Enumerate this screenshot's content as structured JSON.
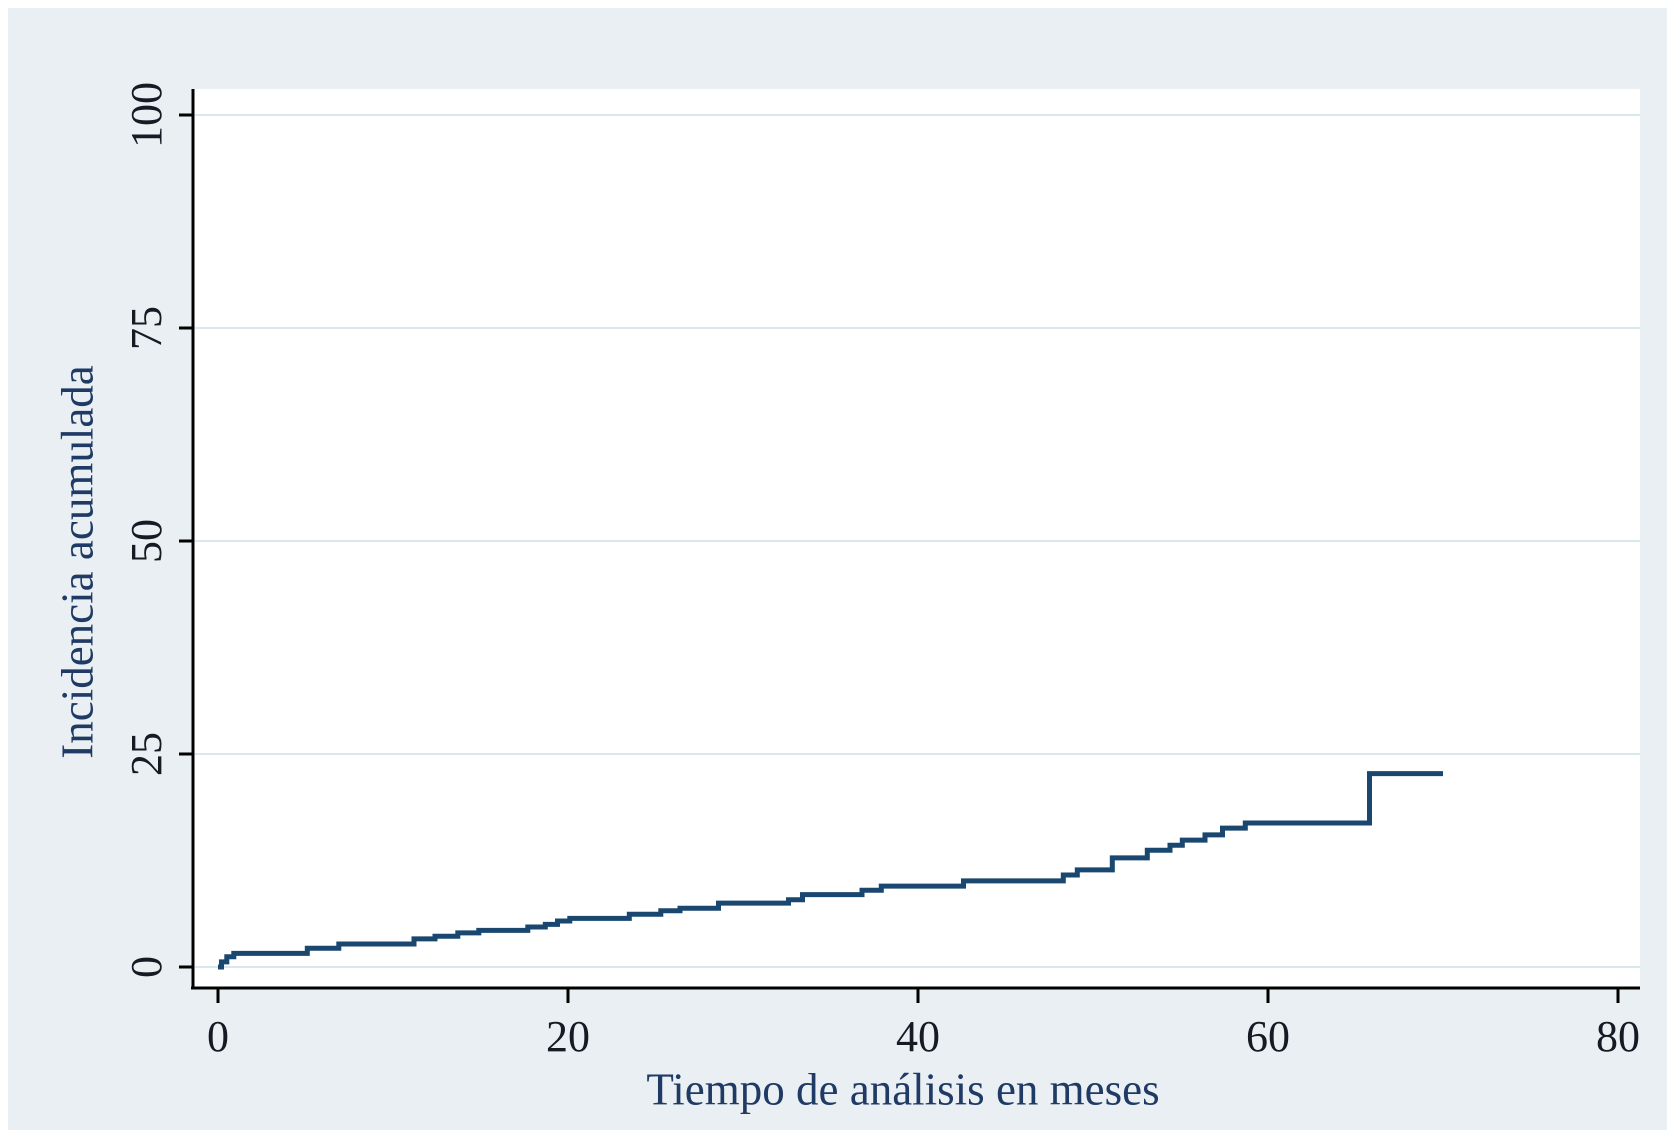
{
  "figure": {
    "background": "#ffffff",
    "panel_color": "#e9eff2",
    "plot_background": "#ffffff",
    "grid_color": "#d9e8ec",
    "axis_color": "#000000",
    "line_color": "#1a476f",
    "tick_label_color": "#151a24",
    "axis_title_color": "#1f3a64"
  },
  "chart_data": {
    "type": "line",
    "subtype": "step-cumulative-incidence",
    "title": "",
    "xlabel": "Tiempo de análisis en meses",
    "ylabel": "Incidencia acumulada",
    "xlim": [
      0,
      80
    ],
    "ylim": [
      0,
      100
    ],
    "x_ticks": [
      0,
      20,
      40,
      60,
      80
    ],
    "y_ticks": [
      0,
      25,
      50,
      75,
      100
    ],
    "x_tick_labels": [
      "0",
      "20",
      "40",
      "60",
      "80"
    ],
    "y_tick_labels": [
      "0",
      "25",
      "50",
      "75",
      "100"
    ],
    "grid": "horizontal",
    "legend": "none",
    "series": [
      {
        "name": "Incidencia acumulada",
        "steps": [
          [
            0,
            0
          ],
          [
            0.2,
            0.6
          ],
          [
            0.5,
            1.2
          ],
          [
            0.9,
            1.6
          ],
          [
            5.1,
            2.2
          ],
          [
            6.9,
            2.7
          ],
          [
            11.2,
            3.3
          ],
          [
            12.4,
            3.6
          ],
          [
            13.7,
            4.0
          ],
          [
            14.9,
            4.3
          ],
          [
            17.7,
            4.7
          ],
          [
            18.7,
            5.0
          ],
          [
            19.4,
            5.4
          ],
          [
            20.1,
            5.7
          ],
          [
            23.5,
            6.2
          ],
          [
            25.3,
            6.6
          ],
          [
            26.4,
            6.9
          ],
          [
            28.6,
            7.5
          ],
          [
            32.6,
            7.9
          ],
          [
            33.4,
            8.5
          ],
          [
            36.8,
            9.0
          ],
          [
            37.9,
            9.5
          ],
          [
            42.6,
            10.1
          ],
          [
            48.3,
            10.8
          ],
          [
            49.1,
            11.4
          ],
          [
            51.1,
            12.8
          ],
          [
            53.1,
            13.7
          ],
          [
            54.4,
            14.3
          ],
          [
            55.1,
            14.9
          ],
          [
            56.4,
            15.5
          ],
          [
            57.4,
            16.3
          ],
          [
            58.7,
            16.9
          ],
          [
            65.8,
            22.7
          ]
        ],
        "end_time": 70,
        "final_value": 22.7
      }
    ]
  }
}
